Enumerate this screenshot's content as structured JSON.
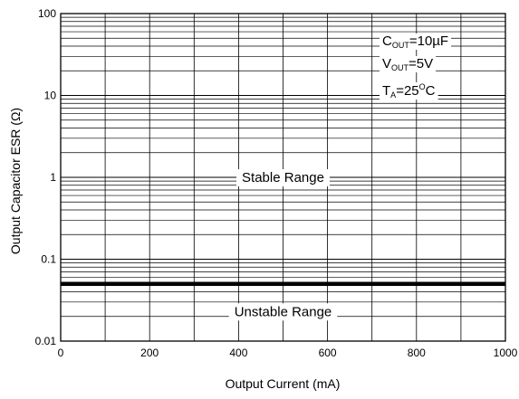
{
  "chart_data": {
    "type": "line",
    "title": "",
    "xlabel": "Output Current (mA)",
    "ylabel": "Output Capacitor ESR (Ω)",
    "xlim": [
      0,
      1000
    ],
    "ylim": [
      0.01,
      100
    ],
    "yscale": "log",
    "grid": true,
    "x_ticks": [
      0,
      200,
      400,
      600,
      800,
      1000
    ],
    "x_tick_labels": [
      "0",
      "200",
      "400",
      "600",
      "800",
      "1000"
    ],
    "y_ticks": [
      0.01,
      0.1,
      1,
      10,
      100
    ],
    "y_tick_labels": [
      "0.01",
      "0.1",
      "1",
      "10",
      "100"
    ],
    "series": [
      {
        "x": [
          0,
          1000
        ],
        "y": [
          0.05,
          0.05
        ],
        "color": "#000000"
      }
    ],
    "regions": [
      {
        "label": "Stable Range",
        "x": 500,
        "y": 1
      },
      {
        "label": "Unstable Range",
        "x": 500,
        "y": 0.023
      }
    ],
    "conditions": [
      {
        "main": "C",
        "sub": "OUT",
        "rest": "=10µF"
      },
      {
        "main": "V",
        "sub": "OUT",
        "rest": "=5V"
      },
      {
        "main": "T",
        "sub": "A",
        "rest": "=25",
        "sup": "O",
        "tail": "C"
      }
    ]
  }
}
